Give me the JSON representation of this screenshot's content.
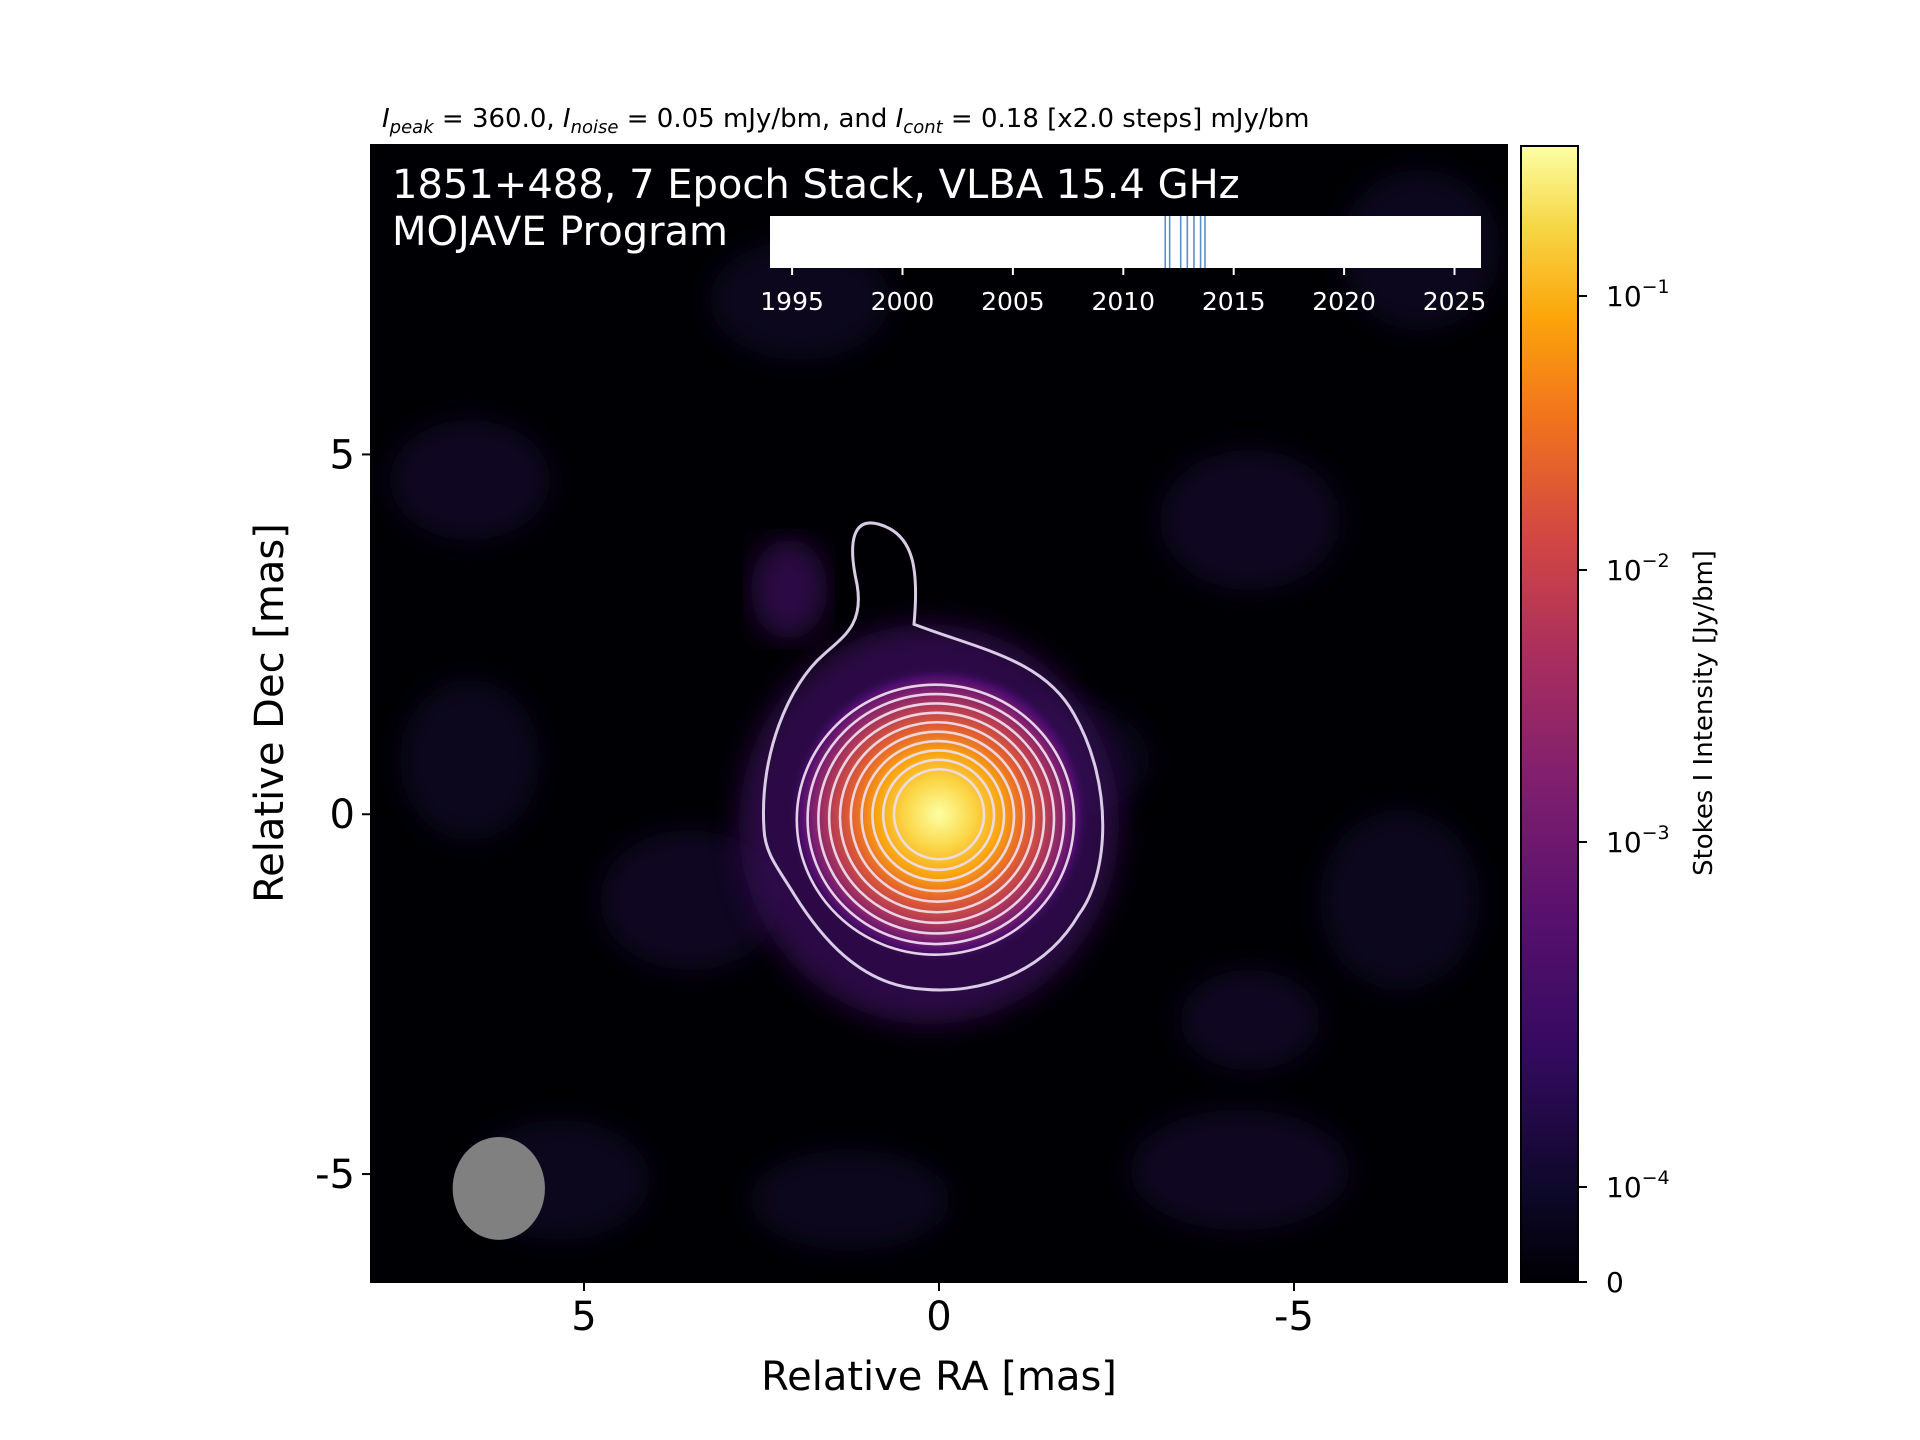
{
  "chart_data": {
    "type": "heatmap",
    "top_title": {
      "peak_sym": "I",
      "peak_sub": "peak",
      "peak_val": " = 360.0, ",
      "noise_sym": "I",
      "noise_sub": "noise",
      "noise_val": " = 0.05 mJy/bm, and ",
      "cont_sym": "I",
      "cont_sub": "cont",
      "cont_val": " = 0.18 [x2.0 steps] mJy/bm"
    },
    "annotation_line1": "1851+488, 7 Epoch Stack, VLBA 15.4 GHz",
    "annotation_line2": "MOJAVE Program",
    "xlabel": "Relative RA [mas]",
    "ylabel": "Relative Dec [mas]",
    "xlim": [
      8.0,
      -8.0
    ],
    "ylim": [
      -6.5,
      9.3
    ],
    "xticks": [
      {
        "v": 5,
        "label": "5"
      },
      {
        "v": 0,
        "label": "0"
      },
      {
        "v": -5,
        "label": "-5"
      }
    ],
    "yticks": [
      {
        "v": 5,
        "label": "5"
      },
      {
        "v": 0,
        "label": "0"
      },
      {
        "v": -5,
        "label": "-5"
      }
    ],
    "source": {
      "ra": 0,
      "dec": 0,
      "peak_jy": 0.36
    },
    "contour_levels_mjy": [
      0.18,
      0.36,
      0.72,
      1.44,
      2.88,
      5.76,
      11.52,
      23.04,
      46.08,
      92.16,
      184.32
    ],
    "beam": {
      "ra": 6.2,
      "dec": -5.2,
      "major_mas": 1.45,
      "minor_mas": 1.3
    },
    "colorbar": {
      "label": "Stokes I Intensity [Jy/bm]",
      "colormap": "inferno",
      "ticks": [
        {
          "base": "10",
          "exp": "−1",
          "value": 0.1
        },
        {
          "base": "10",
          "exp": "−2",
          "value": 0.01
        },
        {
          "base": "10",
          "exp": "−3",
          "value": 0.001
        },
        {
          "base": "10",
          "exp": "−4",
          "value": 0.0001
        },
        {
          "base": "0",
          "exp": "",
          "value": 0
        }
      ]
    },
    "epoch_timeline": {
      "xlim": [
        1994,
        2026.2
      ],
      "ticks": [
        "1995",
        "2000",
        "2005",
        "2010",
        "2015",
        "2020",
        "2025"
      ],
      "epochs": [
        2011.9,
        2012.1,
        2012.6,
        2012.9,
        2013.2,
        2013.5,
        2013.7
      ],
      "line_color": "#5b8fc8"
    }
  }
}
